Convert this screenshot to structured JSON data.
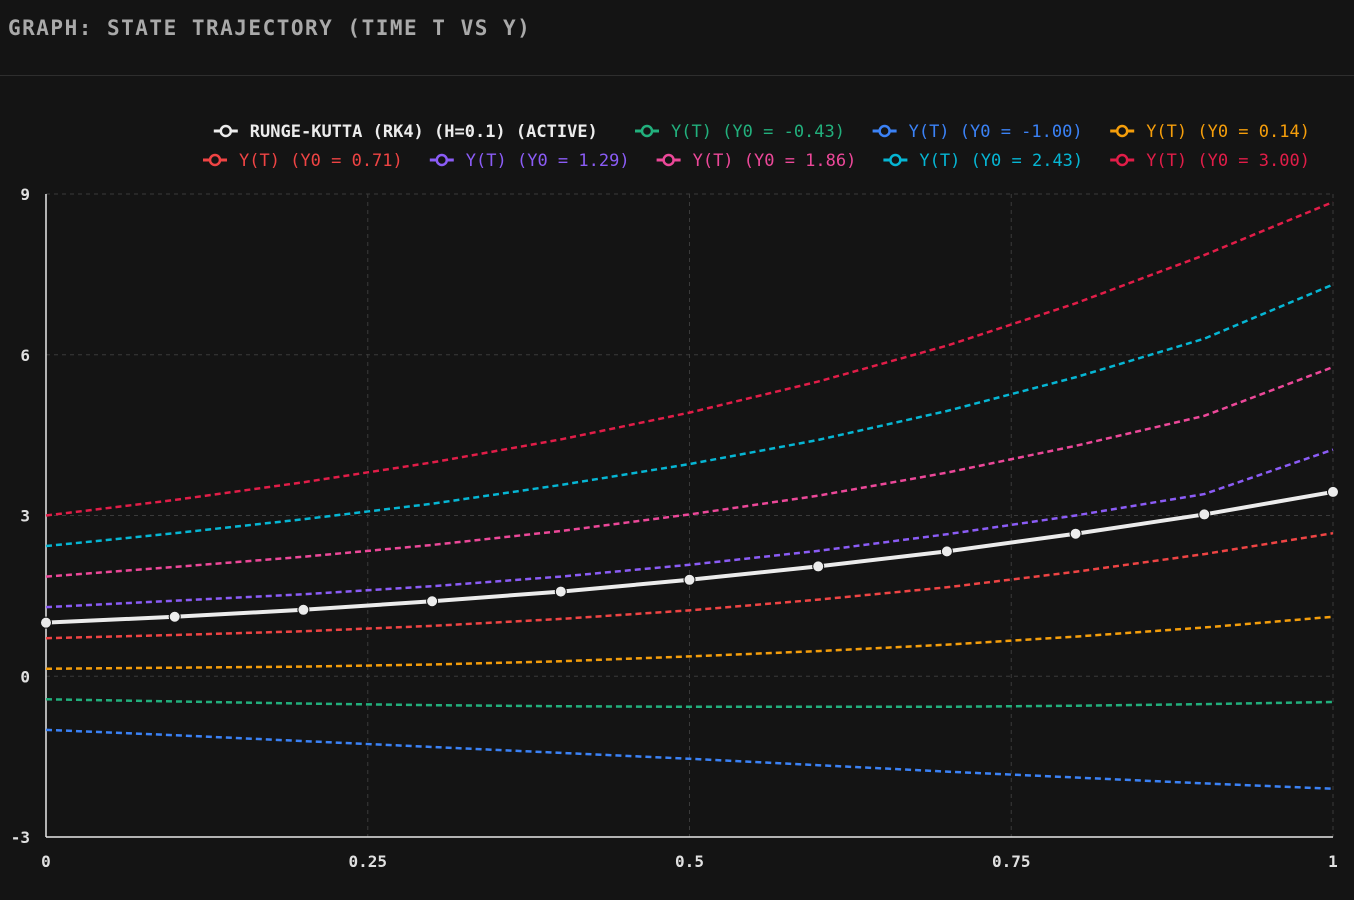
{
  "header": {
    "title": "GRAPH: STATE TRAJECTORY (TIME T VS Y)"
  },
  "colors": {
    "background": "#141414",
    "axis": "#e6e6e6",
    "grid": "#3a3a3a",
    "tick_text": "#e0e0e0",
    "header_text": "#a9a9a9"
  },
  "chart_data": {
    "type": "line",
    "xlim": [
      0,
      1
    ],
    "ylim": [
      -3,
      9
    ],
    "x_ticks": [
      "0",
      "0.25",
      "0.5",
      "0.75",
      "1"
    ],
    "y_ticks": [
      "9",
      "6",
      "3",
      "0",
      "-3"
    ],
    "x_tick_values": [
      0,
      0.25,
      0.5,
      0.75,
      1
    ],
    "y_tick_values": [
      9,
      6,
      3,
      0,
      -3
    ],
    "grid": true,
    "legend_position": "top-right",
    "x": [
      0,
      0.1,
      0.2,
      0.3,
      0.4,
      0.5,
      0.6,
      0.7,
      0.8,
      0.9,
      1.0
    ],
    "series": [
      {
        "name": "RUNGE-KUTTA (RK4) (H=0.1) (ACTIVE)",
        "color": "#ececec",
        "style": "solid",
        "markers": true,
        "values": [
          1.0,
          1.11,
          1.24,
          1.4,
          1.58,
          1.8,
          2.05,
          2.33,
          2.66,
          3.02,
          3.44
        ]
      },
      {
        "name": "Y(T) (Y0 = -0.43)",
        "color": "#22b07d",
        "style": "dashed",
        "values": [
          -0.43,
          -0.47,
          -0.51,
          -0.54,
          -0.56,
          -0.57,
          -0.57,
          -0.57,
          -0.55,
          -0.52,
          -0.48
        ]
      },
      {
        "name": "Y(T) (Y0 = -1.00)",
        "color": "#3b82f6",
        "style": "dashed",
        "values": [
          -1.0,
          -1.1,
          -1.21,
          -1.32,
          -1.43,
          -1.54,
          -1.66,
          -1.78,
          -1.89,
          -2.0,
          -2.1
        ]
      },
      {
        "name": "Y(T) (Y0 = 0.14)",
        "color": "#f59e0b",
        "style": "dashed",
        "values": [
          0.14,
          0.16,
          0.18,
          0.22,
          0.28,
          0.37,
          0.47,
          0.59,
          0.74,
          0.91,
          1.11
        ]
      },
      {
        "name": "Y(T) (Y0 = 0.71)",
        "color": "#ef4444",
        "style": "dashed",
        "values": [
          0.71,
          0.77,
          0.84,
          0.94,
          1.07,
          1.23,
          1.43,
          1.66,
          1.95,
          2.28,
          2.67
        ]
      },
      {
        "name": "Y(T) (Y0 = 1.29)",
        "color": "#8b5cf6",
        "style": "dashed",
        "values": [
          1.29,
          1.41,
          1.53,
          1.68,
          1.86,
          2.08,
          2.34,
          2.65,
          3.0,
          3.4,
          4.23
        ]
      },
      {
        "name": "Y(T) (Y0 = 1.86)",
        "color": "#ec4899",
        "style": "dashed",
        "values": [
          1.86,
          2.04,
          2.23,
          2.45,
          2.71,
          3.02,
          3.37,
          3.8,
          4.3,
          4.86,
          5.77
        ]
      },
      {
        "name": "Y(T) (Y0 = 2.43)",
        "color": "#06b6d4",
        "style": "dashed",
        "values": [
          2.43,
          2.67,
          2.93,
          3.22,
          3.57,
          3.96,
          4.41,
          4.95,
          5.58,
          6.3,
          7.31
        ]
      },
      {
        "name": "Y(T) (Y0 = 3.00)",
        "color": "#e11d48",
        "style": "dashed",
        "values": [
          3.0,
          3.29,
          3.62,
          3.99,
          4.42,
          4.92,
          5.5,
          6.17,
          6.96,
          7.86,
          8.85
        ]
      }
    ]
  }
}
